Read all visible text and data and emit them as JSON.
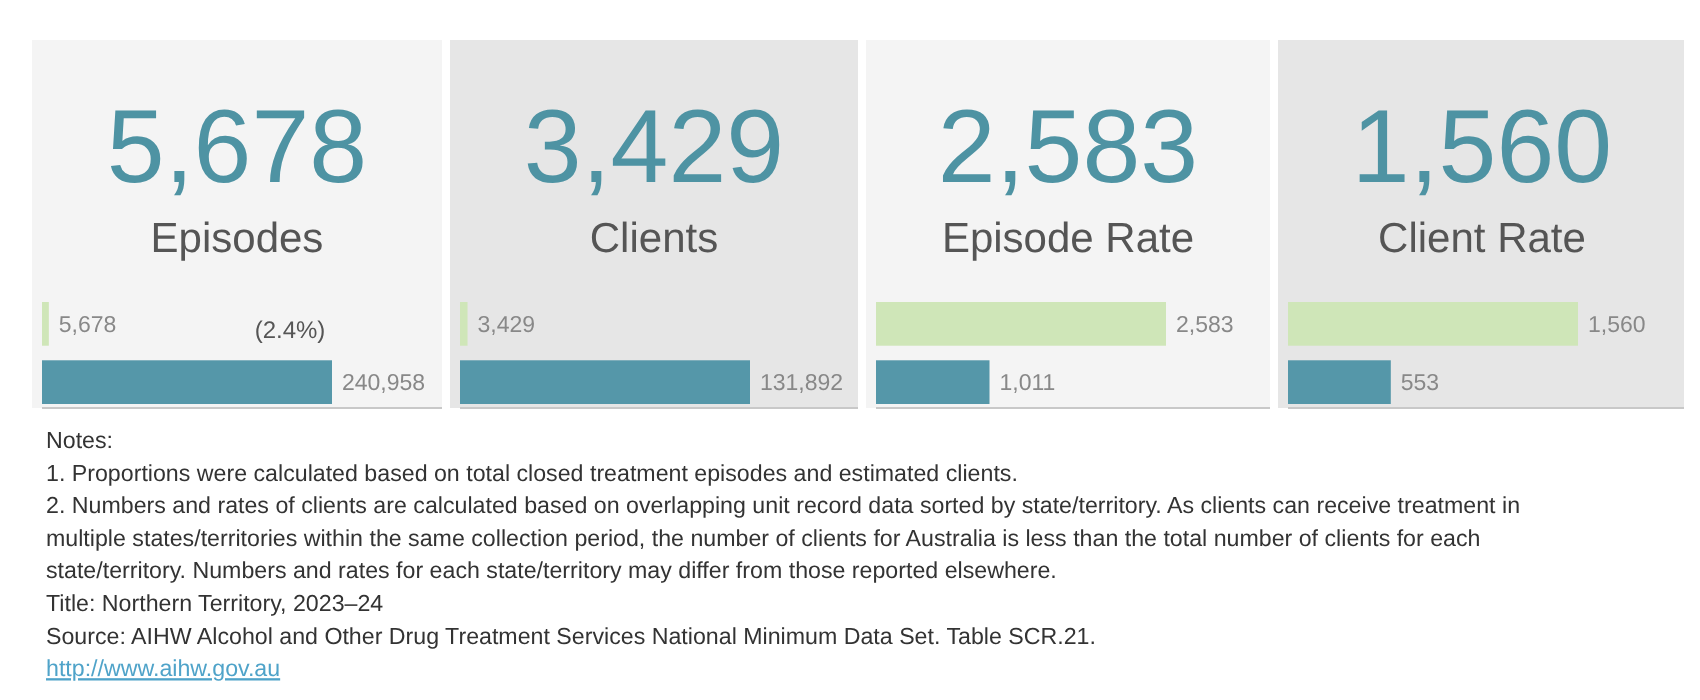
{
  "chart_data": [
    {
      "type": "bar",
      "orientation": "horizontal",
      "title": "5,678",
      "subtitle": "Episodes",
      "categories": [
        null,
        null
      ],
      "values": [
        5678,
        240958
      ],
      "colors": [
        "#cfe6b8",
        "#5597a9"
      ],
      "value_labels": [
        "5,678",
        "240,958"
      ],
      "annotations": [
        "(2.4%)"
      ]
    },
    {
      "type": "bar",
      "orientation": "horizontal",
      "title": "3,429",
      "subtitle": "Clients",
      "categories": [
        null,
        null
      ],
      "values": [
        3429,
        131892
      ],
      "colors": [
        "#cfe6b8",
        "#5597a9"
      ],
      "value_labels": [
        "3,429",
        "131,892"
      ]
    },
    {
      "type": "bar",
      "orientation": "horizontal",
      "title": "2,583",
      "subtitle": "Episode Rate",
      "categories": [
        null,
        null
      ],
      "values": [
        2583,
        1011
      ],
      "colors": [
        "#cfe6b8",
        "#5597a9"
      ],
      "value_labels": [
        "2,583",
        "1,011"
      ]
    },
    {
      "type": "bar",
      "orientation": "horizontal",
      "title": "1,560",
      "subtitle": "Client Rate",
      "categories": [
        null,
        null
      ],
      "values": [
        1560,
        553
      ],
      "colors": [
        "#cfe6b8",
        "#5597a9"
      ],
      "value_labels": [
        "1,560",
        "553"
      ]
    },
    {
      "type": "other",
      "annotations": [
        "Notes:",
        "1. Proportions were calculated based on total closed treatment episodes and estimated clients.",
        "2. Numbers and rates of clients are calculated based on overlapping unit record data sorted by state/territory. As clients can receive treatment in",
        "multiple states/territories within the same collection period, the number of clients for Australia is less than the total number of clients for each",
        "state/territory. Numbers and rates for each state/territory may differ from those reported elsewhere.",
        "Title: Northern Territory, 2023–24",
        "Source: AIHW Alcohol and Other Drug Treatment Services National Minimum Data Set. Table SCR.21.",
        "http://www.aihw.gov.au"
      ]
    }
  ]
}
